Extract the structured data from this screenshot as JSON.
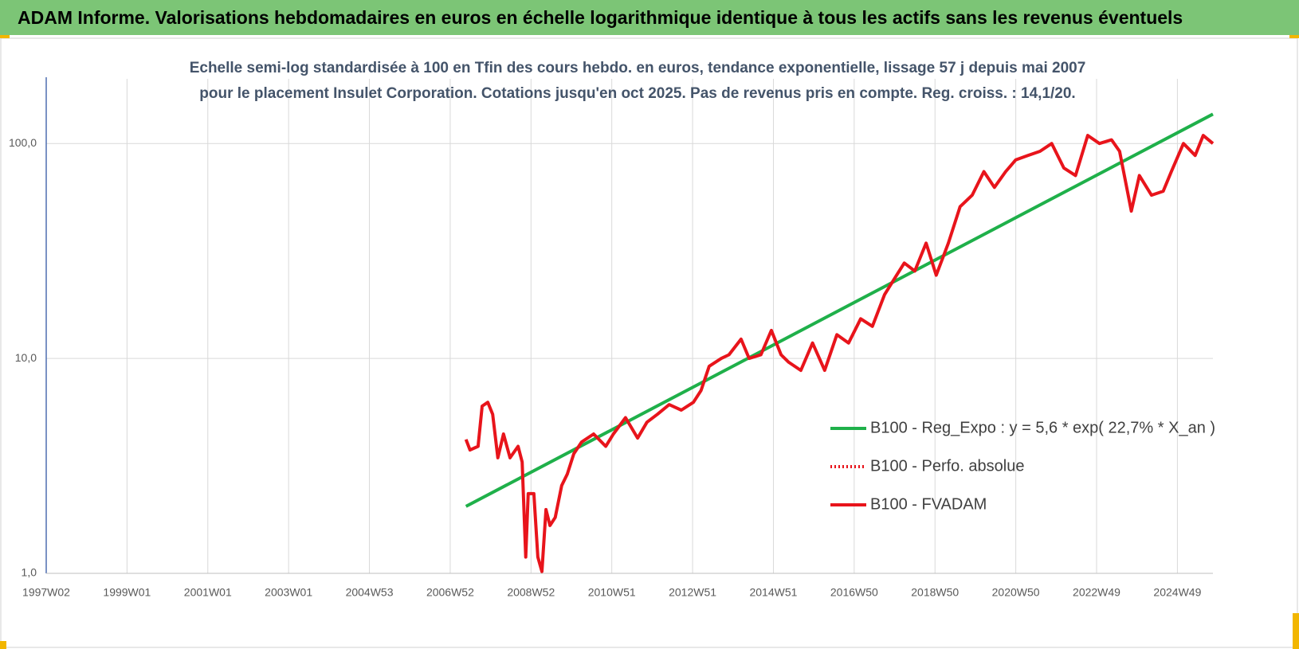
{
  "header": {
    "title": "ADAM Informe. Valorisations hebdomadaires en euros en échelle logarithmique identique à tous les actifs sans les revenus éventuels"
  },
  "chart_data": {
    "type": "line",
    "title": "Echelle semi-log standardisée à 100 en Tfin des cours hebdo. en euros, tendance exponentielle, lissage 57 j depuis mai 2007 pour le placement Insulet Corporation. Cotations jusqu'en oct 2025. Pas de revenus pris en compte. Reg. croiss. : 14,1/20.",
    "log_scale_y": true,
    "grid": true,
    "legend": "right",
    "xlim": [
      1997.0,
      2025.88
    ],
    "xticks": [
      {
        "value": 1997,
        "label": "1997W02"
      },
      {
        "value": 1999,
        "label": "1999W01"
      },
      {
        "value": 2001,
        "label": "2001W01"
      },
      {
        "value": 2003,
        "label": "2003W01"
      },
      {
        "value": 2005,
        "label": "2004W53"
      },
      {
        "value": 2007,
        "label": "2006W52"
      },
      {
        "value": 2009,
        "label": "2008W52"
      },
      {
        "value": 2011,
        "label": "2010W51"
      },
      {
        "value": 2013,
        "label": "2012W51"
      },
      {
        "value": 2015,
        "label": "2014W51"
      },
      {
        "value": 2017,
        "label": "2016W50"
      },
      {
        "value": 2019,
        "label": "2018W50"
      },
      {
        "value": 2021,
        "label": "2020W50"
      },
      {
        "value": 2023,
        "label": "2022W49"
      },
      {
        "value": 2025,
        "label": "2024W49"
      }
    ],
    "ylim": [
      1,
      200
    ],
    "yticks": [
      {
        "value": 1,
        "label": "1,0"
      },
      {
        "value": 10,
        "label": "10,0"
      },
      {
        "value": 100,
        "label": "100,0"
      }
    ],
    "series": [
      {
        "name": "B100 - Reg_Expo : y = 5,6 * exp( 22,7% * X_an )",
        "color": "#1fb04a",
        "style": "solid",
        "x": [
          2007.39,
          2025.88
        ],
        "values": [
          2.05,
          137
        ]
      },
      {
        "name": "B100 - Perfo. absolue",
        "color": "#e8141b",
        "style": "dotted",
        "x": [],
        "values": []
      },
      {
        "name": "B100 - FVADAM",
        "color": "#e8141b",
        "style": "solid",
        "x": [
          2007.39,
          2007.49,
          2007.69,
          2007.79,
          2007.93,
          2008.05,
          2008.18,
          2008.32,
          2008.48,
          2008.68,
          2008.78,
          2008.87,
          2008.93,
          2009.07,
          2009.17,
          2009.27,
          2009.37,
          2009.47,
          2009.6,
          2009.76,
          2009.9,
          2010.06,
          2010.25,
          2010.55,
          2010.85,
          2011.04,
          2011.34,
          2011.64,
          2011.87,
          2012.13,
          2012.42,
          2012.72,
          2013.02,
          2013.21,
          2013.41,
          2013.71,
          2013.9,
          2014.2,
          2014.4,
          2014.69,
          2014.95,
          2015.19,
          2015.38,
          2015.68,
          2015.97,
          2016.27,
          2016.57,
          2016.86,
          2017.16,
          2017.45,
          2017.75,
          2018.05,
          2018.24,
          2018.5,
          2018.78,
          2019.03,
          2019.33,
          2019.62,
          2019.92,
          2020.21,
          2020.47,
          2020.75,
          2021.0,
          2021.3,
          2021.6,
          2021.89,
          2022.19,
          2022.48,
          2022.78,
          2023.07,
          2023.37,
          2023.57,
          2023.86,
          2024.06,
          2024.36,
          2024.65,
          2024.85,
          2025.15,
          2025.44,
          2025.64,
          2025.88
        ],
        "values": [
          4.2,
          3.75,
          3.9,
          6.0,
          6.25,
          5.5,
          3.45,
          4.45,
          3.45,
          3.9,
          3.3,
          1.19,
          2.35,
          2.35,
          1.19,
          1.02,
          1.98,
          1.67,
          1.82,
          2.56,
          2.9,
          3.6,
          4.08,
          4.45,
          3.9,
          4.45,
          5.3,
          4.26,
          5.05,
          5.5,
          6.1,
          5.75,
          6.25,
          7.1,
          9.2,
          10,
          10.4,
          12.3,
          10,
          10.4,
          13.5,
          10.4,
          9.6,
          8.8,
          11.8,
          8.8,
          12.9,
          11.8,
          15.3,
          14.1,
          19.8,
          24.4,
          27.8,
          25.5,
          34.4,
          24.4,
          34.4,
          50.8,
          57.5,
          74,
          62.5,
          74,
          84,
          88,
          92,
          100,
          77,
          71,
          109,
          100,
          104,
          92,
          48.5,
          71,
          57.5,
          60,
          74,
          100,
          88,
          109,
          100
        ]
      }
    ]
  }
}
